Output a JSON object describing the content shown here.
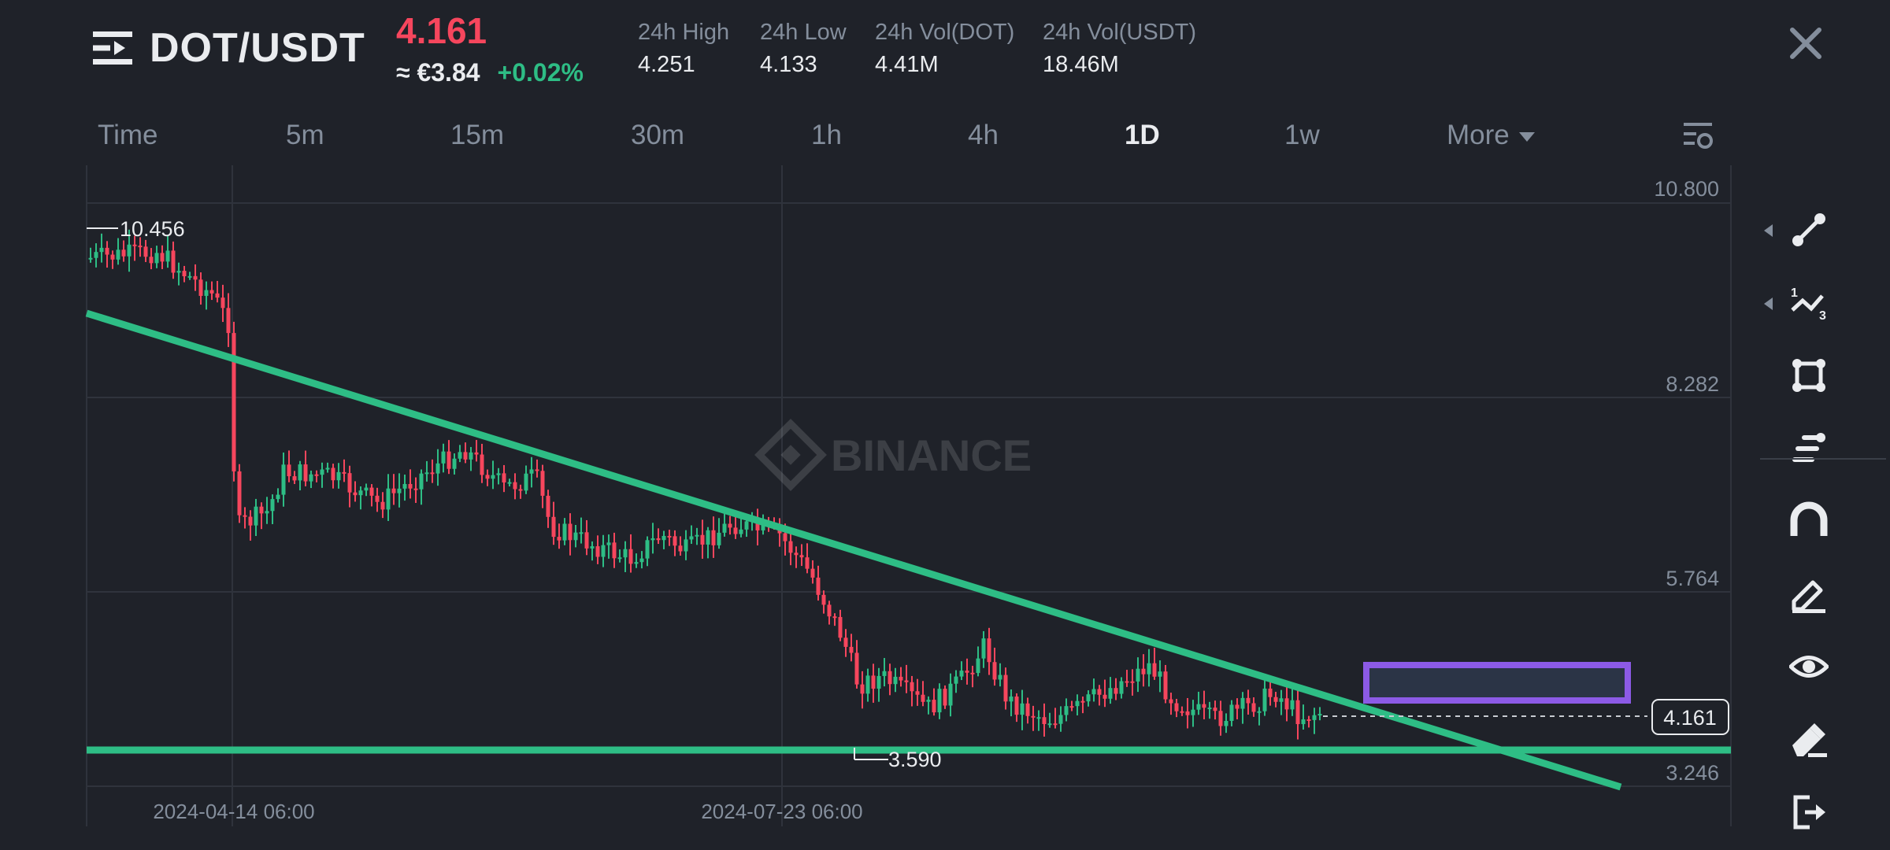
{
  "header": {
    "pair": "DOT/USDT",
    "last_price": "4.161",
    "fiat_price": "≈ €3.84",
    "change": "+0.02%",
    "stats": [
      {
        "label": "24h High",
        "value": "4.251"
      },
      {
        "label": "24h Low",
        "value": "4.133"
      },
      {
        "label": "24h Vol(DOT)",
        "value": "4.41M"
      },
      {
        "label": "24h Vol(USDT)",
        "value": "18.46M"
      }
    ],
    "colors": {
      "down": "#f6465d",
      "up": "#2ebd85",
      "muted": "#848e9c"
    }
  },
  "tabs": [
    {
      "label": "Time",
      "active": false
    },
    {
      "label": "5m",
      "active": false
    },
    {
      "label": "15m",
      "active": false
    },
    {
      "label": "30m",
      "active": false
    },
    {
      "label": "1h",
      "active": false
    },
    {
      "label": "4h",
      "active": false
    },
    {
      "label": "1D",
      "active": true
    },
    {
      "label": "1w",
      "active": false
    },
    {
      "label": "More",
      "active": false
    }
  ],
  "chart": {
    "watermark": "BINANCE",
    "price_axis": [
      "10.800",
      "8.282",
      "5.764",
      "3.246"
    ],
    "time_axis": [
      "2024-04-14 06:00",
      "2024-07-23 06:00"
    ],
    "high_marker": "10.456",
    "low_marker": "3.590",
    "current_price_label": "4.161",
    "ylim": [
      3.0,
      10.8
    ],
    "trendline_color": "#2ebd85",
    "rectangle_color": "#8c5ae6"
  },
  "toolbar": {
    "icons": [
      "trend-line-icon",
      "fib-icon",
      "rectangle-shape-icon",
      "horizontal-lines-icon",
      "magnet-icon",
      "pencil-icon",
      "eye-icon",
      "eraser-icon",
      "exit-icon"
    ]
  }
}
